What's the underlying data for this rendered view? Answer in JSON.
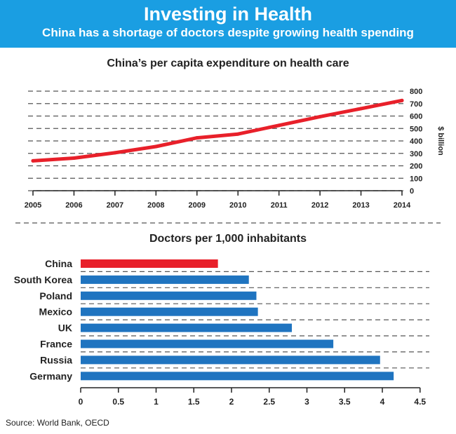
{
  "header": {
    "title": "Investing in Health",
    "subtitle": "China has a shortage of doctors despite growing health spending"
  },
  "source": "Source:  World Bank, OECD",
  "colors": {
    "header_bg": "#1a9ee2",
    "line": "#e8202a",
    "bar_blue": "#1f74c0",
    "bar_highlight": "#e8202a"
  },
  "chart_data": [
    {
      "type": "line",
      "title": "China’s per capita expenditure on health care",
      "ylabel": "$ billion",
      "xlabel": "",
      "x": [
        "2005",
        "2006",
        "2007",
        "2008",
        "2009",
        "2010",
        "2011",
        "2012",
        "2013",
        "2014"
      ],
      "values": [
        240,
        262,
        305,
        355,
        425,
        455,
        525,
        595,
        660,
        725
      ],
      "yticks": [
        0,
        100,
        200,
        300,
        400,
        500,
        600,
        700,
        800
      ],
      "ylim": [
        0,
        800
      ],
      "grid": true,
      "color": "#e8202a"
    },
    {
      "type": "bar",
      "orientation": "horizontal",
      "title": "Doctors per 1,000 inhabitants",
      "categories": [
        "China",
        "South Korea",
        "Poland",
        "Mexico",
        "UK",
        "France",
        "Russia",
        "Germany"
      ],
      "values": [
        1.82,
        2.23,
        2.33,
        2.35,
        2.8,
        3.35,
        3.97,
        4.15
      ],
      "highlight": "China",
      "xticks": [
        "0",
        "0.5",
        "1",
        "1.5",
        "2",
        "2.5",
        "3",
        "3.5",
        "4",
        "4.5"
      ],
      "xlim": [
        0,
        4.5
      ],
      "grid": true
    }
  ]
}
